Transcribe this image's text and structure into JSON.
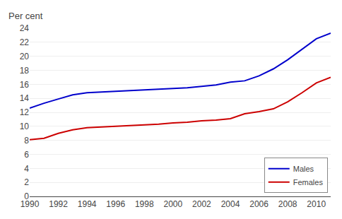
{
  "chart_data": {
    "type": "line",
    "ylabel": "Per cent",
    "x": [
      1990,
      1991,
      1992,
      1993,
      1994,
      1995,
      1996,
      1997,
      1998,
      1999,
      2000,
      2001,
      2002,
      2003,
      2004,
      2005,
      2006,
      2007,
      2008,
      2009,
      2010,
      2011
    ],
    "series": [
      {
        "name": "Males",
        "color": "#0000CC",
        "values": [
          12.6,
          13.3,
          13.9,
          14.5,
          14.8,
          14.9,
          15.0,
          15.1,
          15.2,
          15.3,
          15.4,
          15.5,
          15.7,
          15.9,
          16.3,
          16.5,
          17.2,
          18.2,
          19.5,
          21.0,
          22.5,
          23.3
        ]
      },
      {
        "name": "Females",
        "color": "#CC0000",
        "values": [
          8.1,
          8.3,
          9.0,
          9.5,
          9.8,
          9.9,
          10.0,
          10.1,
          10.2,
          10.3,
          10.5,
          10.6,
          10.8,
          10.9,
          11.1,
          11.8,
          12.1,
          12.5,
          13.5,
          14.8,
          16.2,
          17.0
        ]
      }
    ],
    "xlim": [
      1990,
      2011
    ],
    "xticks": [
      1990,
      1992,
      1994,
      1996,
      1998,
      2000,
      2002,
      2004,
      2006,
      2008,
      2010
    ],
    "ylim": [
      0,
      24
    ],
    "yticks": [
      0,
      2,
      4,
      6,
      8,
      10,
      12,
      14,
      16,
      18,
      20,
      22,
      24
    ],
    "grid": true,
    "legend": "lower right"
  }
}
